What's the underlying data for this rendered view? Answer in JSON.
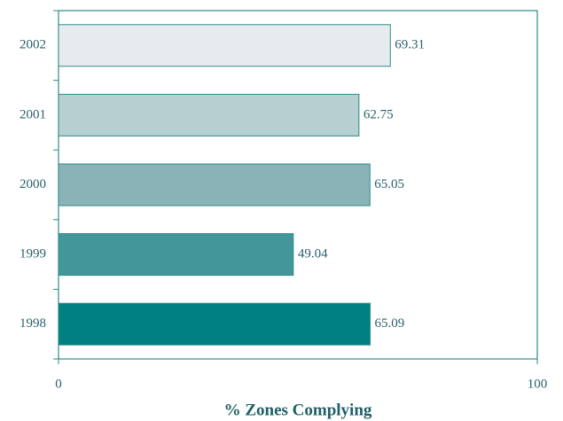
{
  "chart_data": {
    "type": "barh",
    "xlabel": "% Zones Complying",
    "categories": [
      "2002",
      "2001",
      "2000",
      "1999",
      "1998"
    ],
    "values": [
      69.31,
      62.75,
      65.05,
      49.04,
      65.09
    ],
    "colors": [
      "#e6eced",
      "#b6cfd1",
      "#89b3b7",
      "#43979a",
      "#008080"
    ],
    "xlim": [
      0,
      100
    ],
    "xticks": [
      0,
      100
    ]
  }
}
